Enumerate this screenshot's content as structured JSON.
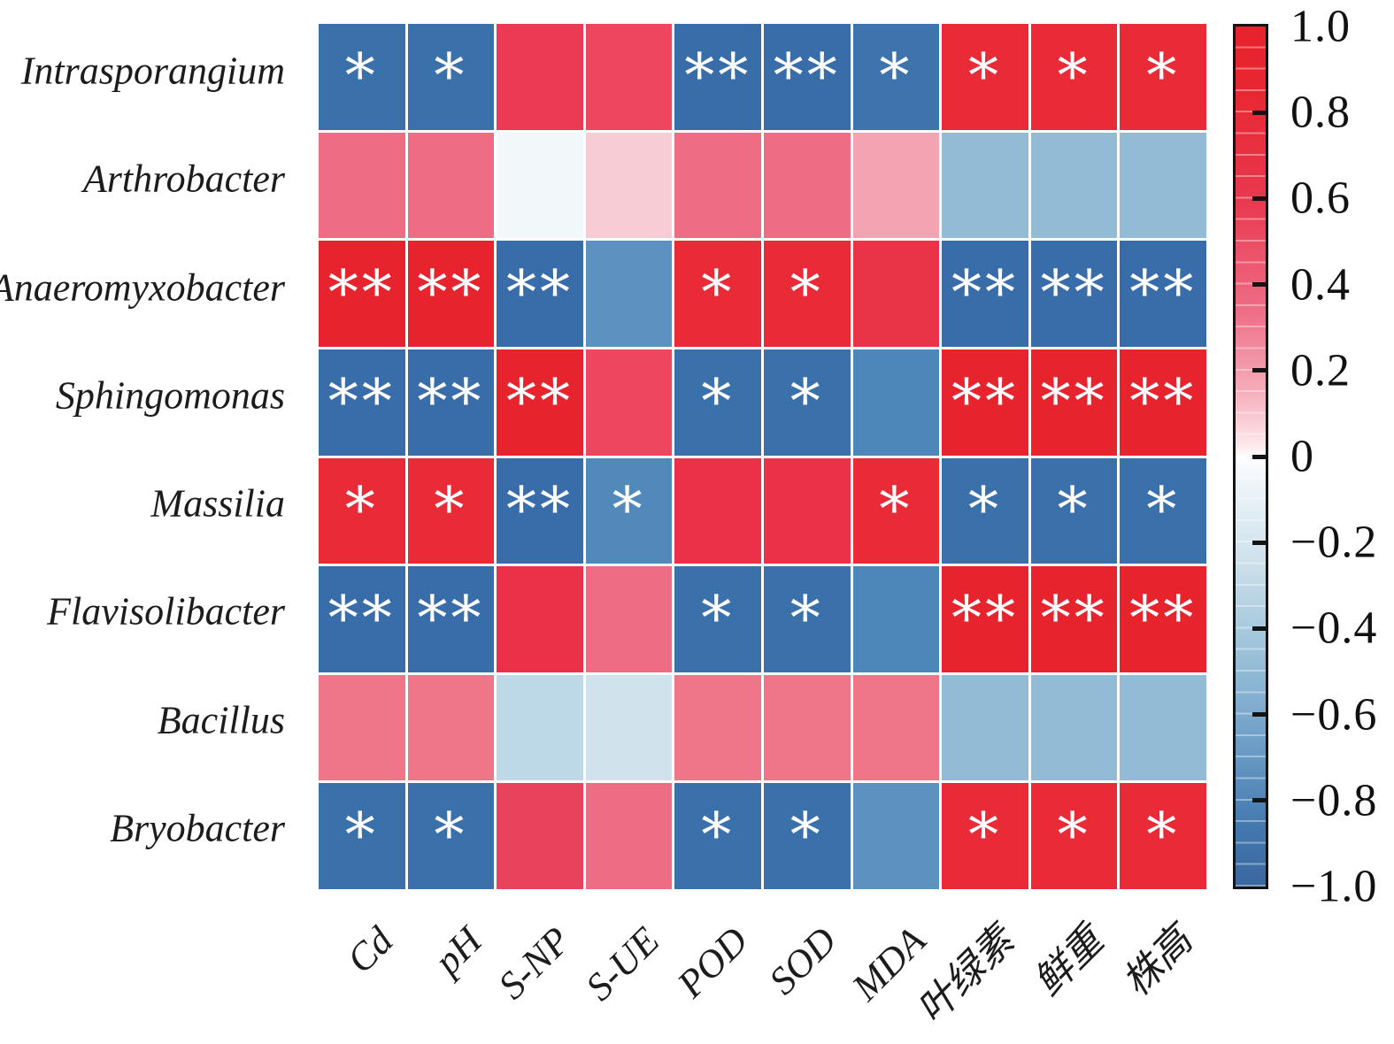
{
  "figure": {
    "kind": "correlation heatmap with significance stars",
    "background": "#ffffff",
    "text_color": "#1c1c1c"
  },
  "chart_data": {
    "type": "heatmap",
    "rows": [
      "Intrasporangium",
      "Arthrobacter",
      "Anaeromyxobacter",
      "Sphingomonas",
      "Massilia",
      "Flavisolibacter",
      "Bacillus",
      "Bryobacter"
    ],
    "columns": [
      "Cd",
      "pH",
      "S-NP",
      "S-UE",
      "POD",
      "SOD",
      "MDA",
      "叶绿素",
      "鲜重",
      "株高"
    ],
    "value_range": [
      -1.0,
      1.0
    ],
    "cells": [
      [
        {
          "value": -0.78,
          "sig": "*",
          "color": "#3b71ab"
        },
        {
          "value": -0.78,
          "sig": "*",
          "color": "#3b71ab"
        },
        {
          "value": 0.76,
          "sig": "",
          "color": "#ec3a54"
        },
        {
          "value": 0.72,
          "sig": "",
          "color": "#ef4660"
        },
        {
          "value": -0.84,
          "sig": "**",
          "color": "#386da9"
        },
        {
          "value": -0.84,
          "sig": "**",
          "color": "#386da9"
        },
        {
          "value": -0.77,
          "sig": "*",
          "color": "#3e74ad"
        },
        {
          "value": 0.8,
          "sig": "*",
          "color": "#e92b38"
        },
        {
          "value": 0.8,
          "sig": "*",
          "color": "#e92b38"
        },
        {
          "value": 0.79,
          "sig": "*",
          "color": "#e92b38"
        }
      ],
      [
        {
          "value": 0.52,
          "sig": "",
          "color": "#ee6d85"
        },
        {
          "value": 0.52,
          "sig": "",
          "color": "#ee6d85"
        },
        {
          "value": -0.02,
          "sig": "",
          "color": "#f2f7fa"
        },
        {
          "value": 0.22,
          "sig": "",
          "color": "#f8ccd4"
        },
        {
          "value": 0.54,
          "sig": "",
          "color": "#ee6d85"
        },
        {
          "value": 0.53,
          "sig": "",
          "color": "#ee6d85"
        },
        {
          "value": 0.35,
          "sig": "",
          "color": "#f3a3b2"
        },
        {
          "value": -0.42,
          "sig": "",
          "color": "#92bbd6"
        },
        {
          "value": -0.43,
          "sig": "",
          "color": "#92bbd6"
        },
        {
          "value": -0.42,
          "sig": "",
          "color": "#92bbd6"
        }
      ],
      [
        {
          "value": 0.92,
          "sig": "**",
          "color": "#e7232e"
        },
        {
          "value": 0.91,
          "sig": "**",
          "color": "#e7232e"
        },
        {
          "value": -0.85,
          "sig": "**",
          "color": "#386da9"
        },
        {
          "value": -0.58,
          "sig": "",
          "color": "#5d92c0"
        },
        {
          "value": 0.8,
          "sig": "*",
          "color": "#e92b38"
        },
        {
          "value": 0.79,
          "sig": "*",
          "color": "#e92b38"
        },
        {
          "value": 0.76,
          "sig": "",
          "color": "#e93448"
        },
        {
          "value": -0.88,
          "sig": "**",
          "color": "#386da9"
        },
        {
          "value": -0.88,
          "sig": "**",
          "color": "#386da9"
        },
        {
          "value": -0.87,
          "sig": "**",
          "color": "#386da9"
        }
      ],
      [
        {
          "value": -0.86,
          "sig": "**",
          "color": "#386da9"
        },
        {
          "value": -0.85,
          "sig": "**",
          "color": "#386da9"
        },
        {
          "value": 0.93,
          "sig": "**",
          "color": "#e7232e"
        },
        {
          "value": 0.7,
          "sig": "",
          "color": "#ef4660"
        },
        {
          "value": -0.78,
          "sig": "*",
          "color": "#3b71ab"
        },
        {
          "value": -0.77,
          "sig": "*",
          "color": "#3b71ab"
        },
        {
          "value": -0.66,
          "sig": "",
          "color": "#4d86b8"
        },
        {
          "value": 0.9,
          "sig": "**",
          "color": "#e7232e"
        },
        {
          "value": 0.9,
          "sig": "**",
          "color": "#e7232e"
        },
        {
          "value": 0.89,
          "sig": "**",
          "color": "#e7232e"
        }
      ],
      [
        {
          "value": 0.79,
          "sig": "*",
          "color": "#e92b38"
        },
        {
          "value": 0.78,
          "sig": "*",
          "color": "#e92b38"
        },
        {
          "value": -0.86,
          "sig": "**",
          "color": "#386da9"
        },
        {
          "value": -0.7,
          "sig": "*",
          "color": "#5089ba"
        },
        {
          "value": 0.74,
          "sig": "",
          "color": "#ea3147"
        },
        {
          "value": 0.73,
          "sig": "",
          "color": "#ea3147"
        },
        {
          "value": 0.77,
          "sig": "*",
          "color": "#e92b38"
        },
        {
          "value": -0.76,
          "sig": "*",
          "color": "#3b71ab"
        },
        {
          "value": -0.76,
          "sig": "*",
          "color": "#3b71ab"
        },
        {
          "value": -0.75,
          "sig": "*",
          "color": "#3b71ab"
        }
      ],
      [
        {
          "value": -0.85,
          "sig": "**",
          "color": "#386da9"
        },
        {
          "value": -0.84,
          "sig": "**",
          "color": "#386da9"
        },
        {
          "value": 0.8,
          "sig": "",
          "color": "#ea3147"
        },
        {
          "value": 0.55,
          "sig": "",
          "color": "#ee6d85"
        },
        {
          "value": -0.77,
          "sig": "*",
          "color": "#3b71ab"
        },
        {
          "value": -0.76,
          "sig": "*",
          "color": "#3b71ab"
        },
        {
          "value": -0.65,
          "sig": "",
          "color": "#4d86b8"
        },
        {
          "value": 0.9,
          "sig": "**",
          "color": "#e7232e"
        },
        {
          "value": 0.89,
          "sig": "**",
          "color": "#e7232e"
        },
        {
          "value": 0.89,
          "sig": "**",
          "color": "#e7232e"
        }
      ],
      [
        {
          "value": 0.5,
          "sig": "",
          "color": "#ef7589"
        },
        {
          "value": 0.5,
          "sig": "",
          "color": "#ef7589"
        },
        {
          "value": -0.25,
          "sig": "",
          "color": "#bdd8e6"
        },
        {
          "value": -0.15,
          "sig": "",
          "color": "#d0e2ec"
        },
        {
          "value": 0.52,
          "sig": "",
          "color": "#ef7589"
        },
        {
          "value": 0.51,
          "sig": "",
          "color": "#ef7589"
        },
        {
          "value": 0.48,
          "sig": "",
          "color": "#ef7589"
        },
        {
          "value": -0.4,
          "sig": "",
          "color": "#92bbd6"
        },
        {
          "value": -0.4,
          "sig": "",
          "color": "#92bbd6"
        },
        {
          "value": -0.38,
          "sig": "",
          "color": "#92bbd6"
        }
      ],
      [
        {
          "value": -0.78,
          "sig": "*",
          "color": "#3b71ab"
        },
        {
          "value": -0.77,
          "sig": "*",
          "color": "#3b71ab"
        },
        {
          "value": 0.74,
          "sig": "",
          "color": "#e9425c"
        },
        {
          "value": 0.52,
          "sig": "",
          "color": "#ee6d85"
        },
        {
          "value": -0.79,
          "sig": "*",
          "color": "#3b71ab"
        },
        {
          "value": -0.78,
          "sig": "*",
          "color": "#3b71ab"
        },
        {
          "value": -0.58,
          "sig": "",
          "color": "#5d92c0"
        },
        {
          "value": 0.8,
          "sig": "*",
          "color": "#e92b38"
        },
        {
          "value": 0.79,
          "sig": "*",
          "color": "#e92b38"
        },
        {
          "value": 0.8,
          "sig": "*",
          "color": "#e92b38"
        }
      ]
    ],
    "colorbar": {
      "min": -1.0,
      "max": 1.0,
      "labels": [
        {
          "value": 1.0,
          "text": "1.0"
        },
        {
          "value": 0.8,
          "text": "0.8"
        },
        {
          "value": 0.6,
          "text": "0.6"
        },
        {
          "value": 0.4,
          "text": "0.4"
        },
        {
          "value": 0.2,
          "text": "0.2"
        },
        {
          "value": 0.0,
          "text": "0"
        },
        {
          "value": -0.2,
          "text": "−0.2"
        },
        {
          "value": -0.4,
          "text": "−0.4"
        },
        {
          "value": -0.6,
          "text": "−0.6"
        },
        {
          "value": -0.8,
          "text": "−0.8"
        },
        {
          "value": -1.0,
          "text": "−1.0"
        }
      ],
      "tick_marks_at": [
        0.8,
        0.6,
        0.4,
        0.2,
        0.0,
        -0.2,
        -0.4,
        -0.6,
        -0.8
      ],
      "gradient_stops": [
        [
          0.0,
          "#e7232e"
        ],
        [
          0.06,
          "#e7262f"
        ],
        [
          0.2,
          "#e9384e"
        ],
        [
          0.33,
          "#ee6d86"
        ],
        [
          0.42,
          "#f5aab8"
        ],
        [
          0.49,
          "#fdebee"
        ],
        [
          0.5,
          "#ffffff"
        ],
        [
          0.53,
          "#eef5f9"
        ],
        [
          0.62,
          "#cfe1ec"
        ],
        [
          0.72,
          "#9ec4da"
        ],
        [
          0.84,
          "#6b9cc6"
        ],
        [
          0.93,
          "#4379af"
        ],
        [
          1.0,
          "#3a67a0"
        ]
      ]
    }
  }
}
